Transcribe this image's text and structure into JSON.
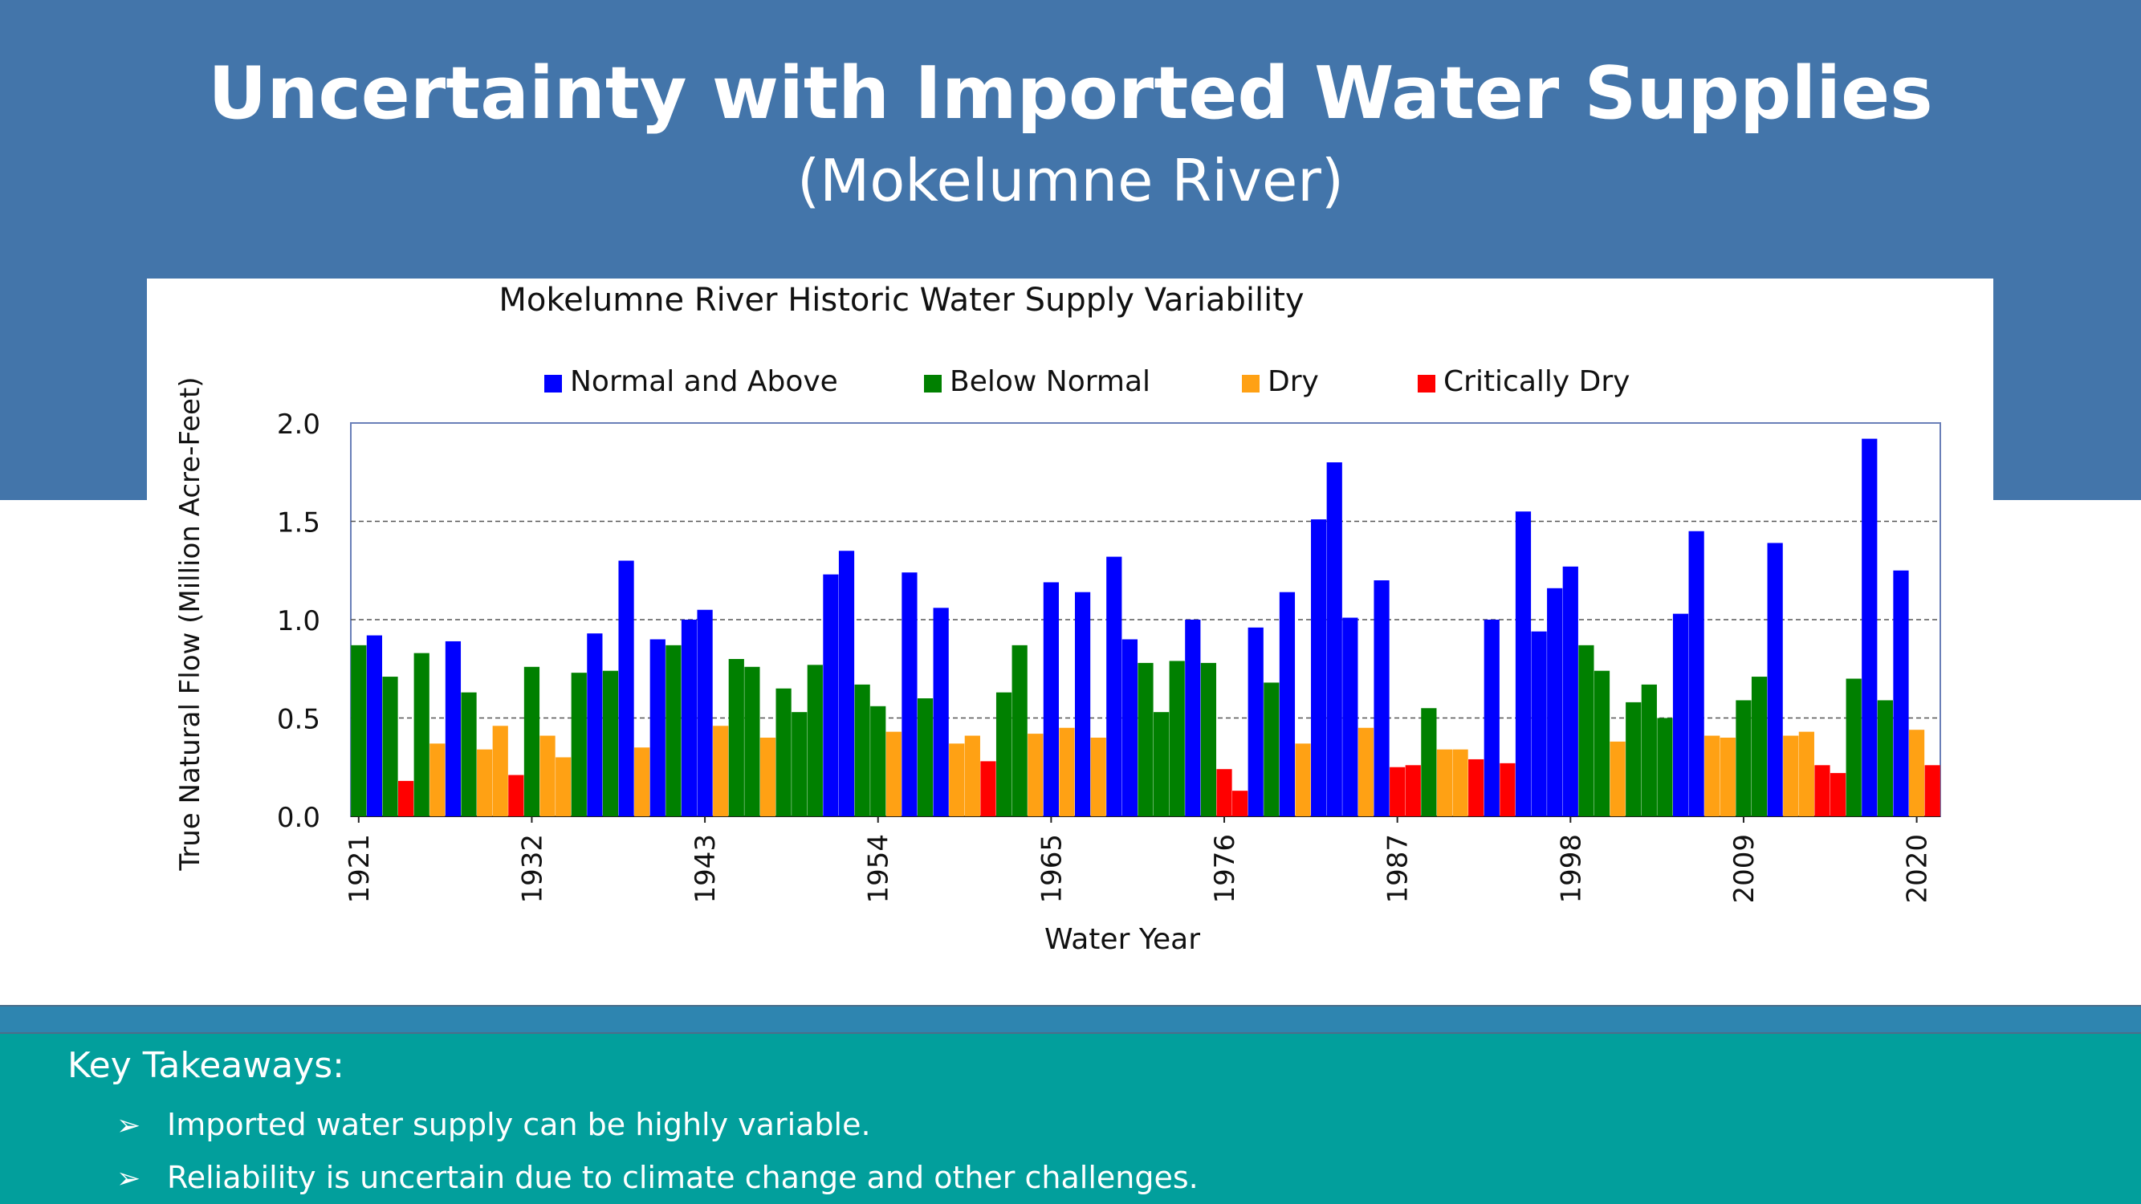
{
  "slide": {
    "title": "Uncertainty with Imported Water Supplies",
    "subtitle": "(Mokelumne River)"
  },
  "takeaways": {
    "heading": "Key Takeaways:",
    "items": [
      "Imported water supply can be highly variable.",
      "Reliability is uncertain due to climate change and other challenges."
    ],
    "bullet_glyph": "➢"
  },
  "colors": {
    "header_band": "#4375aa",
    "footer_band": "#029f9c",
    "Normal and Above": "#0000ff",
    "Below Normal": "#008000",
    "Dry": "#ffa114",
    "Critically Dry": "#ff0000"
  },
  "chart_data": {
    "type": "bar",
    "title": "Mokelumne River Historic Water Supply Variability",
    "xlabel": "Water Year",
    "ylabel": "True Natural Flow (Million Acre-Feet)",
    "ylim": [
      0,
      2.0
    ],
    "yticks": [
      "0.0",
      "0.5",
      "1.0",
      "1.5",
      "2.0"
    ],
    "xticks": [
      "1921",
      "1932",
      "1943",
      "1954",
      "1965",
      "1976",
      "1987",
      "1998",
      "2009",
      "2020"
    ],
    "grid": "horizontal dashed",
    "legend_position": "top",
    "legend": [
      "Normal and Above",
      "Below Normal",
      "Dry",
      "Critically Dry"
    ],
    "x": [
      1921,
      1922,
      1923,
      1924,
      1925,
      1926,
      1927,
      1928,
      1929,
      1930,
      1931,
      1932,
      1933,
      1934,
      1935,
      1936,
      1937,
      1938,
      1939,
      1940,
      1941,
      1942,
      1943,
      1944,
      1945,
      1946,
      1947,
      1948,
      1949,
      1950,
      1951,
      1952,
      1953,
      1954,
      1955,
      1956,
      1957,
      1958,
      1959,
      1960,
      1961,
      1962,
      1963,
      1964,
      1965,
      1966,
      1967,
      1968,
      1969,
      1970,
      1971,
      1972,
      1973,
      1974,
      1975,
      1976,
      1977,
      1978,
      1979,
      1980,
      1981,
      1982,
      1983,
      1984,
      1985,
      1986,
      1987,
      1988,
      1989,
      1990,
      1991,
      1992,
      1993,
      1994,
      1995,
      1996,
      1997,
      1998,
      1999,
      2000,
      2001,
      2002,
      2003,
      2004,
      2005,
      2006,
      2007,
      2008,
      2009,
      2010,
      2011,
      2012,
      2013,
      2014,
      2015,
      2016,
      2017,
      2018,
      2019,
      2020,
      2021
    ],
    "values": [
      0.87,
      0.92,
      0.71,
      0.18,
      0.83,
      0.37,
      0.89,
      0.63,
      0.34,
      0.46,
      0.21,
      0.76,
      0.41,
      0.3,
      0.73,
      0.93,
      0.74,
      1.3,
      0.35,
      0.9,
      0.87,
      1.0,
      1.05,
      0.46,
      0.8,
      0.76,
      0.4,
      0.65,
      0.53,
      0.77,
      1.23,
      1.35,
      0.67,
      0.56,
      0.43,
      1.24,
      0.6,
      1.06,
      0.37,
      0.41,
      0.28,
      0.63,
      0.87,
      0.42,
      1.19,
      0.45,
      1.14,
      0.4,
      1.32,
      0.9,
      0.78,
      0.53,
      0.79,
      1.0,
      0.78,
      0.24,
      0.13,
      0.96,
      0.68,
      1.14,
      0.37,
      1.51,
      1.8,
      1.01,
      0.45,
      1.2,
      0.25,
      0.26,
      0.55,
      0.34,
      0.34,
      0.29,
      1.0,
      0.27,
      1.55,
      0.94,
      1.16,
      1.27,
      0.87,
      0.74,
      0.38,
      0.58,
      0.67,
      0.5,
      1.03,
      1.45,
      0.41,
      0.4,
      0.59,
      0.71,
      1.39,
      0.41,
      0.43,
      0.26,
      0.22,
      0.7,
      1.92,
      0.59,
      1.25,
      0.44,
      0.26
    ],
    "classes": [
      "Below Normal",
      "Normal and Above",
      "Below Normal",
      "Critically Dry",
      "Below Normal",
      "Dry",
      "Normal and Above",
      "Below Normal",
      "Dry",
      "Dry",
      "Critically Dry",
      "Below Normal",
      "Dry",
      "Dry",
      "Below Normal",
      "Normal and Above",
      "Below Normal",
      "Normal and Above",
      "Dry",
      "Normal and Above",
      "Below Normal",
      "Normal and Above",
      "Normal and Above",
      "Dry",
      "Below Normal",
      "Below Normal",
      "Dry",
      "Below Normal",
      "Below Normal",
      "Below Normal",
      "Normal and Above",
      "Normal and Above",
      "Below Normal",
      "Below Normal",
      "Dry",
      "Normal and Above",
      "Below Normal",
      "Normal and Above",
      "Dry",
      "Dry",
      "Critically Dry",
      "Below Normal",
      "Below Normal",
      "Dry",
      "Normal and Above",
      "Dry",
      "Normal and Above",
      "Dry",
      "Normal and Above",
      "Normal and Above",
      "Below Normal",
      "Below Normal",
      "Below Normal",
      "Normal and Above",
      "Below Normal",
      "Critically Dry",
      "Critically Dry",
      "Normal and Above",
      "Below Normal",
      "Normal and Above",
      "Dry",
      "Normal and Above",
      "Normal and Above",
      "Normal and Above",
      "Dry",
      "Normal and Above",
      "Critically Dry",
      "Critically Dry",
      "Below Normal",
      "Dry",
      "Dry",
      "Critically Dry",
      "Normal and Above",
      "Critically Dry",
      "Normal and Above",
      "Normal and Above",
      "Normal and Above",
      "Normal and Above",
      "Below Normal",
      "Below Normal",
      "Dry",
      "Below Normal",
      "Below Normal",
      "Below Normal",
      "Normal and Above",
      "Normal and Above",
      "Dry",
      "Dry",
      "Below Normal",
      "Below Normal",
      "Normal and Above",
      "Dry",
      "Dry",
      "Critically Dry",
      "Critically Dry",
      "Below Normal",
      "Normal and Above",
      "Below Normal",
      "Normal and Above",
      "Dry",
      "Critically Dry"
    ]
  }
}
